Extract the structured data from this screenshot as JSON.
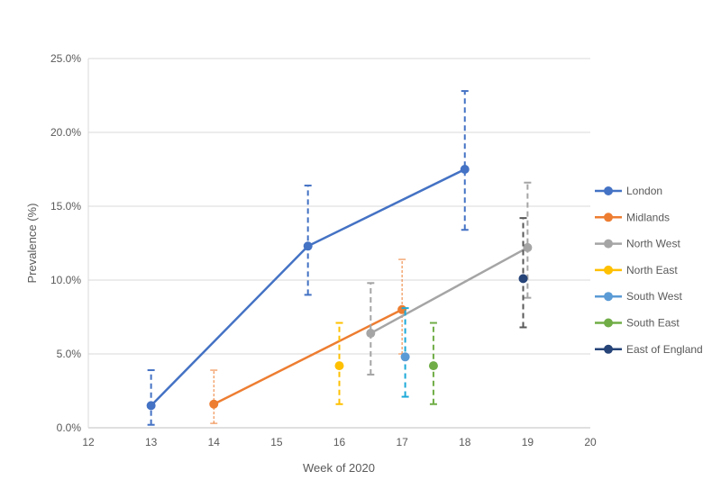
{
  "chart_data": {
    "type": "scatter",
    "title": "",
    "xlabel": "Week of 2020",
    "ylabel": "Prevalence (%)",
    "xlim": [
      12,
      20
    ],
    "ylim": [
      0,
      25
    ],
    "x_ticks": [
      "12",
      "13",
      "14",
      "15",
      "16",
      "17",
      "18",
      "19",
      "20"
    ],
    "y_ticks": [
      "0.0%",
      "5.0%",
      "10.0%",
      "15.0%",
      "20.0%",
      "25.0%"
    ],
    "grid": "horizontal",
    "legend_position": "right",
    "series": [
      {
        "name": "London",
        "color": "#4472C4",
        "line": true,
        "points": [
          {
            "x": 13,
            "y": 1.5,
            "lo": 0.2,
            "hi": 3.9
          },
          {
            "x": 15.5,
            "y": 12.3,
            "lo": 9.0,
            "hi": 16.4
          },
          {
            "x": 18,
            "y": 17.5,
            "lo": 13.4,
            "hi": 22.8
          }
        ]
      },
      {
        "name": "Midlands",
        "color": "#ED7D31",
        "line": true,
        "points": [
          {
            "x": 14,
            "y": 1.6,
            "lo": 0.3,
            "hi": 3.9
          },
          {
            "x": 17,
            "y": 8.0,
            "lo": 5.0,
            "hi": 11.4
          }
        ]
      },
      {
        "name": "North West",
        "color": "#A5A5A5",
        "line": true,
        "points": [
          {
            "x": 16.5,
            "y": 6.4,
            "lo": 3.6,
            "hi": 9.8
          },
          {
            "x": 19,
            "y": 12.2,
            "lo": 8.8,
            "hi": 16.6
          }
        ]
      },
      {
        "name": "North East",
        "color": "#FFC000",
        "line": false,
        "points": [
          {
            "x": 16,
            "y": 4.2,
            "lo": 1.6,
            "hi": 7.1
          }
        ]
      },
      {
        "name": "South West",
        "color": "#5B9BD5",
        "errcolor": "#1CA9D8",
        "line": false,
        "points": [
          {
            "x": 17.05,
            "y": 4.8,
            "lo": 2.1,
            "hi": 8.1
          }
        ]
      },
      {
        "name": "South East",
        "color": "#70AD47",
        "line": false,
        "points": [
          {
            "x": 17.5,
            "y": 4.2,
            "lo": 1.6,
            "hi": 7.1
          }
        ]
      },
      {
        "name": "East of England",
        "color": "#264478",
        "errcolor": "#595959",
        "line": false,
        "points": [
          {
            "x": 18.93,
            "y": 10.1,
            "lo": 6.8,
            "hi": 14.2
          }
        ]
      }
    ]
  }
}
